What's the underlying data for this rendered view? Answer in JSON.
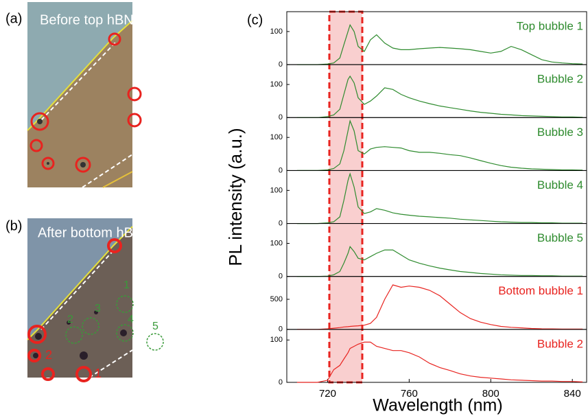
{
  "images": {
    "a": {
      "label": "(a)",
      "caption": "Before top hBN"
    },
    "b": {
      "label": "(b)",
      "caption": "After bottom hBN",
      "green_marks": [
        "1",
        "2",
        "3",
        "4",
        "5"
      ],
      "red_marks": [
        "2",
        "1"
      ]
    }
  },
  "chart_data": [
    {
      "type": "line",
      "panel_label": "(c)",
      "ylabel": "PL intensity (a.u.)",
      "x": [
        705,
        710,
        715,
        720,
        723,
        726,
        728,
        730,
        731,
        733,
        735,
        738,
        741,
        744,
        748,
        752,
        756,
        760,
        765,
        770,
        775,
        780,
        785,
        790,
        795,
        800,
        805,
        810,
        815,
        820,
        825,
        830,
        835,
        840,
        845
      ],
      "xlim": [
        700,
        847
      ],
      "ylim": [
        0,
        160
      ],
      "yticks": [
        0,
        100
      ],
      "series": [
        {
          "name": "Top bubble 1",
          "color": "#2e8b2e",
          "values": [
            0,
            0,
            0,
            2,
            5,
            20,
            60,
            100,
            120,
            100,
            55,
            40,
            75,
            90,
            65,
            50,
            45,
            45,
            48,
            50,
            52,
            50,
            48,
            45,
            40,
            35,
            40,
            55,
            45,
            30,
            15,
            8,
            5,
            3,
            2
          ]
        }
      ]
    },
    {
      "type": "line",
      "x": [
        705,
        710,
        715,
        720,
        723,
        726,
        728,
        730,
        731,
        733,
        735,
        738,
        741,
        744,
        748,
        752,
        756,
        760,
        765,
        770,
        775,
        780,
        785,
        790,
        795,
        800,
        805,
        810,
        815,
        820,
        825,
        830,
        835,
        840,
        845
      ],
      "xlim": [
        700,
        847
      ],
      "ylim": [
        0,
        160
      ],
      "yticks": [
        0,
        100
      ],
      "series": [
        {
          "name": "Bubble 2",
          "color": "#2e8b2e",
          "values": [
            0,
            0,
            0,
            3,
            8,
            25,
            70,
            115,
            125,
            105,
            60,
            40,
            50,
            65,
            90,
            85,
            70,
            60,
            50,
            42,
            35,
            30,
            25,
            20,
            16,
            13,
            10,
            8,
            6,
            5,
            4,
            3,
            2,
            2,
            1
          ]
        }
      ]
    },
    {
      "type": "line",
      "x": [
        705,
        710,
        715,
        720,
        723,
        726,
        728,
        730,
        731,
        733,
        735,
        738,
        741,
        744,
        748,
        752,
        756,
        760,
        765,
        770,
        775,
        780,
        785,
        790,
        795,
        800,
        805,
        810,
        815,
        820,
        825,
        830,
        835,
        840,
        845
      ],
      "xlim": [
        700,
        847
      ],
      "ylim": [
        0,
        160
      ],
      "yticks": [
        0,
        100
      ],
      "series": [
        {
          "name": "Bubble 3",
          "color": "#2e8b2e",
          "values": [
            0,
            0,
            0,
            2,
            6,
            20,
            60,
            120,
            150,
            120,
            60,
            50,
            65,
            70,
            72,
            70,
            68,
            60,
            55,
            55,
            52,
            48,
            45,
            38,
            30,
            22,
            15,
            10,
            7,
            5,
            4,
            3,
            2,
            2,
            1
          ]
        }
      ]
    },
    {
      "type": "line",
      "x": [
        705,
        710,
        715,
        720,
        723,
        726,
        728,
        730,
        731,
        733,
        735,
        738,
        741,
        744,
        748,
        752,
        756,
        760,
        765,
        770,
        775,
        780,
        785,
        790,
        795,
        800,
        805,
        810,
        815,
        820,
        825,
        830,
        835,
        840,
        845
      ],
      "xlim": [
        700,
        847
      ],
      "ylim": [
        0,
        160
      ],
      "yticks": [
        0,
        100
      ],
      "series": [
        {
          "name": "Bubble 4",
          "color": "#2e8b2e",
          "values": [
            0,
            0,
            0,
            2,
            5,
            20,
            70,
            130,
            150,
            110,
            50,
            30,
            35,
            45,
            40,
            32,
            28,
            25,
            22,
            20,
            18,
            16,
            13,
            11,
            9,
            7,
            5,
            4,
            3,
            3,
            2,
            2,
            1,
            1,
            1
          ]
        }
      ]
    },
    {
      "type": "line",
      "x": [
        705,
        710,
        715,
        720,
        723,
        726,
        728,
        730,
        731,
        733,
        735,
        738,
        741,
        744,
        748,
        752,
        756,
        760,
        765,
        770,
        775,
        780,
        785,
        790,
        795,
        800,
        805,
        810,
        815,
        820,
        825,
        830,
        835,
        840,
        845
      ],
      "xlim": [
        700,
        847
      ],
      "ylim": [
        0,
        160
      ],
      "yticks": [
        0,
        100
      ],
      "series": [
        {
          "name": "Bubble 5",
          "color": "#2e8b2e",
          "values": [
            0,
            0,
            0,
            1,
            5,
            15,
            40,
            70,
            90,
            75,
            55,
            50,
            60,
            70,
            80,
            80,
            65,
            50,
            40,
            32,
            25,
            20,
            15,
            12,
            9,
            7,
            5,
            4,
            3,
            3,
            2,
            2,
            1,
            1,
            1
          ]
        }
      ]
    },
    {
      "type": "line",
      "x": [
        705,
        710,
        715,
        720,
        723,
        726,
        728,
        730,
        731,
        733,
        735,
        738,
        741,
        744,
        748,
        752,
        756,
        760,
        765,
        770,
        775,
        780,
        785,
        790,
        795,
        800,
        805,
        810,
        815,
        820,
        825,
        830,
        835,
        840,
        845
      ],
      "xlim": [
        700,
        847
      ],
      "ylim": [
        0,
        880
      ],
      "yticks": [
        0,
        500
      ],
      "series": [
        {
          "name": "Bottom bubble 1",
          "color": "#e8231f",
          "values": [
            0,
            0,
            0,
            10,
            20,
            30,
            40,
            45,
            50,
            55,
            60,
            70,
            100,
            200,
            500,
            740,
            700,
            720,
            700,
            650,
            560,
            420,
            280,
            180,
            120,
            80,
            50,
            35,
            25,
            15,
            10,
            8,
            5,
            5,
            5
          ]
        }
      ]
    },
    {
      "type": "line",
      "xlabel": "Wavelength (nm)",
      "x": [
        705,
        710,
        715,
        720,
        723,
        726,
        728,
        730,
        731,
        733,
        735,
        738,
        741,
        744,
        748,
        752,
        756,
        760,
        765,
        770,
        775,
        780,
        785,
        790,
        795,
        800,
        805,
        810,
        815,
        820,
        825,
        830,
        835,
        840,
        845
      ],
      "xlim": [
        700,
        847
      ],
      "ylim": [
        0,
        125
      ],
      "yticks": [
        0,
        100
      ],
      "xticks": [
        720,
        760,
        800,
        840
      ],
      "series": [
        {
          "name": "Bubble 2",
          "color": "#e8231f",
          "values": [
            0,
            0,
            0,
            5,
            30,
            40,
            55,
            70,
            80,
            85,
            90,
            95,
            95,
            85,
            80,
            75,
            75,
            70,
            60,
            45,
            35,
            28,
            20,
            15,
            12,
            10,
            8,
            6,
            5,
            4,
            3,
            3,
            2,
            2,
            1
          ]
        }
      ]
    }
  ]
}
